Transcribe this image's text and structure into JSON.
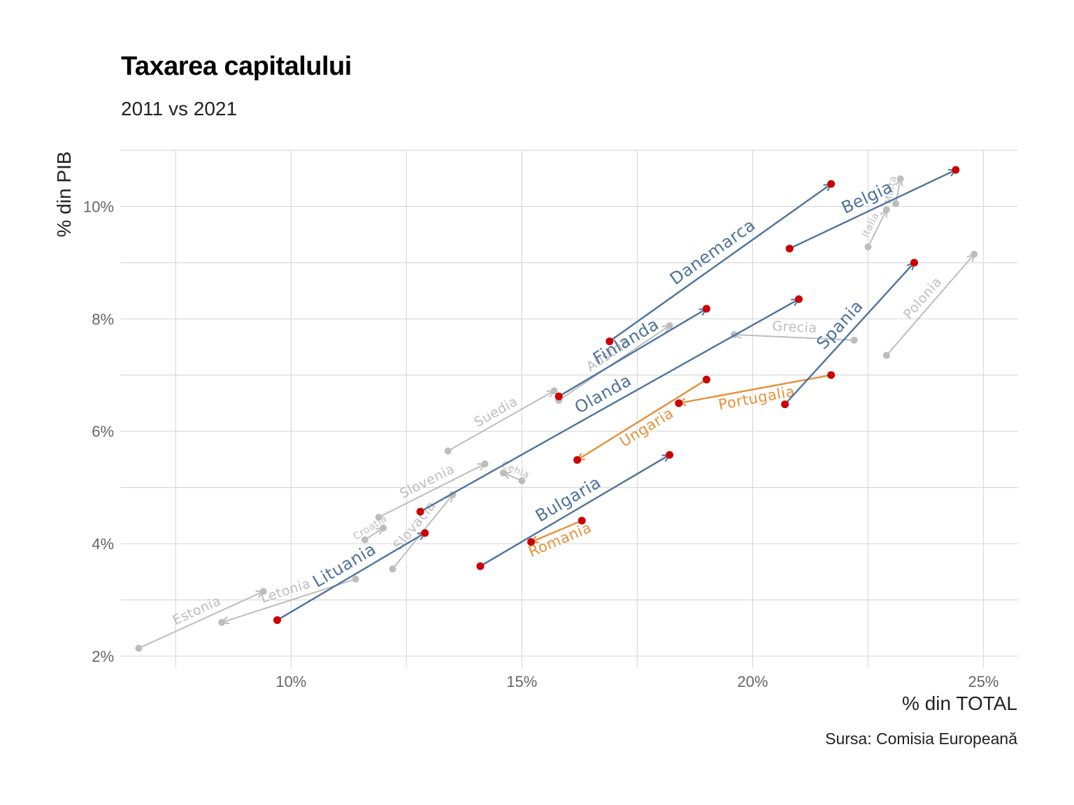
{
  "chart_data": {
    "type": "arrow-scatter",
    "title": "Taxarea capitalului",
    "subtitle": "2011 vs 2021",
    "xlabel": "% din TOTAL",
    "ylabel": "% din PIB",
    "caption": "Sursa: Comisia Europeană",
    "xlim": [
      6.3,
      25.75
    ],
    "ylim": [
      1.8,
      11.0
    ],
    "x_ticks": [
      10,
      15,
      20,
      25
    ],
    "x_tick_labels": [
      "10%",
      "15%",
      "20%",
      "25%"
    ],
    "y_ticks": [
      2,
      4,
      6,
      8,
      10
    ],
    "y_tick_labels": [
      "2%",
      "4%",
      "6%",
      "8%",
      "10%"
    ],
    "colors": {
      "increase": "#4e739c",
      "decrease": "#e8903a",
      "other": "#bdbdbd",
      "highlight_point": "#cc0000"
    },
    "series": [
      {
        "label": "Danemarca",
        "group": "increase",
        "from": [
          16.9,
          7.6
        ],
        "to": [
          21.7,
          10.4
        ]
      },
      {
        "label": "Belgia",
        "group": "increase",
        "from": [
          20.8,
          9.25
        ],
        "to": [
          24.4,
          10.65
        ]
      },
      {
        "label": "Finlanda",
        "group": "increase",
        "from": [
          15.8,
          6.62
        ],
        "to": [
          19.0,
          8.18
        ]
      },
      {
        "label": "Olanda",
        "group": "increase",
        "from": [
          12.8,
          4.57
        ],
        "to": [
          21.0,
          8.35
        ]
      },
      {
        "label": "Spania",
        "group": "increase",
        "from": [
          20.7,
          6.48
        ],
        "to": [
          23.5,
          9.0
        ]
      },
      {
        "label": "Bulgaria",
        "group": "increase",
        "from": [
          14.1,
          3.6
        ],
        "to": [
          18.2,
          5.58
        ]
      },
      {
        "label": "Lituania",
        "group": "increase",
        "from": [
          9.7,
          2.64
        ],
        "to": [
          12.9,
          4.19
        ]
      },
      {
        "label": "Ungaria",
        "group": "decrease",
        "from": [
          19.0,
          6.92
        ],
        "to": [
          16.2,
          5.49
        ]
      },
      {
        "label": "Portugalia",
        "group": "decrease",
        "from": [
          21.7,
          7.0
        ],
        "to": [
          18.4,
          6.5
        ]
      },
      {
        "label": "Romania",
        "group": "decrease",
        "from": [
          16.3,
          4.41
        ],
        "to": [
          15.2,
          4.03
        ]
      },
      {
        "label": "Suedia",
        "group": "other",
        "from": [
          13.4,
          5.65
        ],
        "to": [
          15.7,
          6.72
        ]
      },
      {
        "label": "Austria",
        "group": "other",
        "from": [
          15.8,
          6.55
        ],
        "to": [
          18.2,
          7.88
        ]
      },
      {
        "label": "Grecia",
        "group": "other",
        "from": [
          22.2,
          7.62
        ],
        "to": [
          19.6,
          7.72
        ]
      },
      {
        "label": "Polonia",
        "group": "other",
        "from": [
          22.9,
          7.35
        ],
        "to": [
          24.8,
          9.15
        ]
      },
      {
        "label": "Italia",
        "group": "other",
        "from": [
          22.5,
          9.28
        ],
        "to": [
          22.9,
          9.94
        ]
      },
      {
        "label": "Malta",
        "group": "other",
        "from": [
          23.1,
          10.05
        ],
        "to": [
          23.2,
          10.49
        ]
      },
      {
        "label": "Slovenia",
        "group": "other",
        "from": [
          11.9,
          4.47
        ],
        "to": [
          14.2,
          5.42
        ]
      },
      {
        "label": "Cehia",
        "group": "other",
        "from": [
          15.0,
          5.12
        ],
        "to": [
          14.6,
          5.26
        ]
      },
      {
        "label": "Croatia",
        "group": "other",
        "from": [
          11.6,
          4.07
        ],
        "to": [
          12.0,
          4.28
        ]
      },
      {
        "label": "Slovacia",
        "group": "other",
        "from": [
          12.2,
          3.55
        ],
        "to": [
          13.5,
          4.87
        ]
      },
      {
        "label": "Estonia",
        "group": "other",
        "from": [
          6.7,
          2.14
        ],
        "to": [
          9.4,
          3.15
        ]
      },
      {
        "label": "Letonia",
        "group": "other",
        "from": [
          11.4,
          3.37
        ],
        "to": [
          8.5,
          2.6
        ]
      }
    ]
  }
}
